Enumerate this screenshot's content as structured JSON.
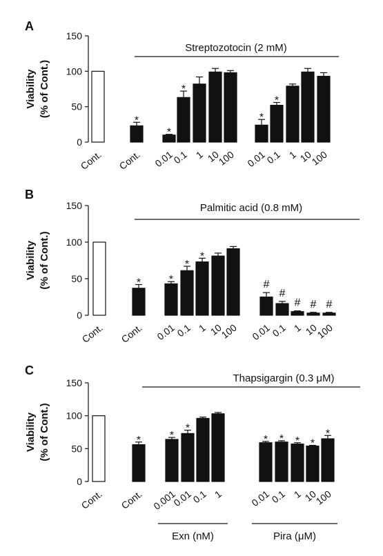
{
  "style": {
    "bar_fill": "#111111",
    "control_fill": "#ffffff",
    "stroke": "#111111"
  },
  "chart_data": [
    {
      "type": "bar",
      "panel": "A",
      "ylabel": [
        "Viability",
        "(% of Cont.)"
      ],
      "ylim": [
        0,
        150
      ],
      "yticks": [
        "0",
        "50",
        "100",
        "150"
      ],
      "treatment": "Streptozotocin (2 mM)",
      "categories": [
        "Cont.",
        "Cont.",
        "0.01",
        "0.1",
        "1",
        "10",
        "100",
        "0.01",
        "0.1",
        "1",
        "10",
        "100"
      ],
      "values": [
        100,
        23,
        10,
        63,
        82,
        99,
        98,
        24,
        52,
        79,
        99,
        93
      ],
      "errors": [
        0,
        5,
        1,
        9,
        10,
        5,
        3,
        8,
        4,
        3,
        5,
        5
      ],
      "markers": [
        "",
        "*",
        "*",
        "*",
        "",
        "",
        "",
        "*",
        "*",
        "",
        "",
        ""
      ],
      "groups": []
    },
    {
      "type": "bar",
      "panel": "B",
      "ylabel": [
        "Viability",
        "(% of Cont.)"
      ],
      "ylim": [
        0,
        150
      ],
      "yticks": [
        "0",
        "50",
        "100",
        "150"
      ],
      "treatment": "Palmitic acid (0.8 mM)",
      "categories": [
        "Cont.",
        "Cont.",
        "0.01",
        "0.1",
        "1",
        "10",
        "100",
        "0.01",
        "0.1",
        "1",
        "10",
        "100"
      ],
      "values": [
        100,
        37,
        43,
        61,
        73,
        81,
        91,
        25,
        16,
        5,
        3,
        3
      ],
      "errors": [
        0,
        5,
        3,
        6,
        5,
        4,
        3,
        6,
        3,
        1,
        1,
        1
      ],
      "markers": [
        "",
        "*",
        "*",
        "*",
        "*",
        "",
        "",
        "#",
        "#",
        "#",
        "#",
        "#"
      ],
      "groups": []
    },
    {
      "type": "bar",
      "panel": "C",
      "ylabel": [
        "Viability",
        "(% of Cont.)"
      ],
      "ylim": [
        0,
        150
      ],
      "yticks": [
        "0",
        "50",
        "100",
        "150"
      ],
      "treatment": "Thapsigargin (0.3 μM)",
      "categories": [
        "Cont.",
        "Cont.",
        "0.001",
        "0.01",
        "0.1",
        "1",
        "0.01",
        "0.1",
        "1",
        "10",
        "100"
      ],
      "values": [
        100,
        56,
        64,
        73,
        96,
        103,
        59,
        60,
        57,
        54,
        65
      ],
      "errors": [
        0,
        4,
        3,
        5,
        2,
        2,
        2,
        2,
        2,
        1,
        5
      ],
      "markers": [
        "",
        "*",
        "*",
        "*",
        "",
        "",
        "*",
        "*",
        "*",
        "*",
        "*"
      ],
      "groups": [
        {
          "label": "Exn (nM)",
          "from": 2,
          "to": 5
        },
        {
          "label": "Pira (μM)",
          "from": 6,
          "to": 10
        }
      ]
    }
  ]
}
